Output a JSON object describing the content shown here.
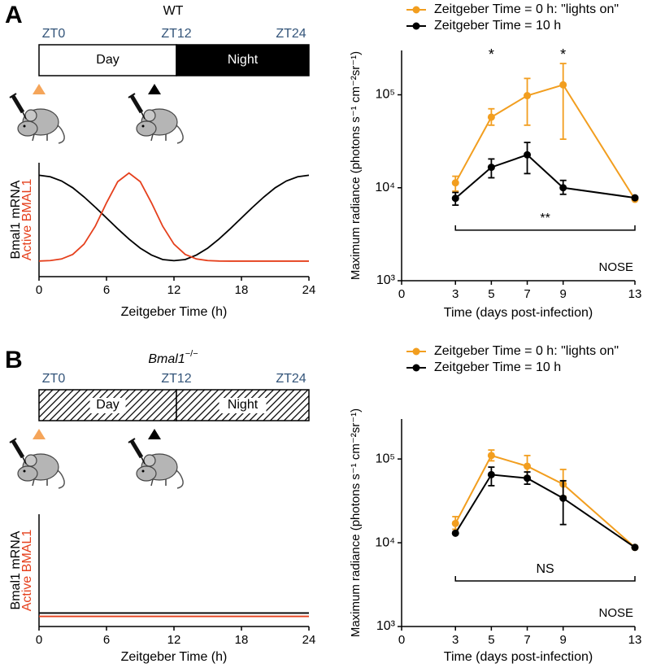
{
  "panels": [
    {
      "label": "A",
      "genotype": "WT",
      "zt": [
        "ZT0",
        "ZT12",
        "ZT24"
      ],
      "day": "Day",
      "night": "Night",
      "hatched": false
    },
    {
      "label": "B",
      "genotype": "Bmal1",
      "genotype_sup": "−/−",
      "zt": [
        "ZT0",
        "ZT12",
        "ZT24"
      ],
      "day": "Day",
      "night": "Night",
      "hatched": true
    }
  ],
  "chart_data": [
    {
      "type": "curve",
      "xlabel": "Zeitgeber Time (h)",
      "xlim": [
        0,
        24
      ],
      "xticks": [
        0,
        6,
        12,
        18,
        24
      ],
      "ylim": [
        0,
        1
      ],
      "x": [
        0,
        1,
        2,
        3,
        4,
        5,
        6,
        7,
        8,
        9,
        10,
        11,
        12,
        13,
        14,
        15,
        16,
        17,
        18,
        19,
        20,
        21,
        22,
        23,
        24
      ],
      "series": [
        {
          "name": "Bmal1 mRNA",
          "color": "#000000",
          "values": [
            0.89,
            0.877,
            0.84,
            0.78,
            0.7,
            0.61,
            0.515,
            0.42,
            0.33,
            0.25,
            0.19,
            0.15,
            0.14,
            0.15,
            0.19,
            0.25,
            0.33,
            0.42,
            0.515,
            0.61,
            0.7,
            0.78,
            0.84,
            0.877,
            0.89
          ]
        },
        {
          "name": "Active BMAL1",
          "color": "#e5401d",
          "values": [
            0.137,
            0.141,
            0.155,
            0.195,
            0.285,
            0.442,
            0.648,
            0.834,
            0.91,
            0.834,
            0.648,
            0.442,
            0.285,
            0.195,
            0.155,
            0.141,
            0.137,
            0.136,
            0.136,
            0.136,
            0.136,
            0.136,
            0.136,
            0.136,
            0.136
          ]
        }
      ]
    },
    {
      "type": "line",
      "log_y": true,
      "xlabel": "Time (days post-infection)",
      "ylabel": "Maximum radiance (photons s⁻¹ cm⁻²sr⁻¹)",
      "xlim": [
        0,
        13
      ],
      "xticks": [
        0,
        3,
        5,
        7,
        9,
        13
      ],
      "ylim": [
        1000,
        300000
      ],
      "yticks": [
        {
          "value": 1000,
          "label": "10³"
        },
        {
          "value": 10000,
          "label": "10⁴"
        },
        {
          "value": 100000,
          "label": "10⁵"
        }
      ],
      "x": [
        3,
        5,
        7,
        9,
        13
      ],
      "legend": "top-left",
      "series": [
        {
          "name": "Zeitgeber Time = 0 h: \"lights on\"",
          "color": "#f29e1f",
          "values": [
            11300,
            57500,
            98000,
            128000,
            7500
          ],
          "err_low": [
            9200,
            47100,
            47100,
            33300,
            null
          ],
          "err_high": [
            13300,
            70700,
            150000,
            217000,
            null
          ]
        },
        {
          "name": "Zeitgeber Time = 10 h",
          "color": "#000000",
          "values": [
            7700,
            16600,
            22600,
            10000,
            7800
          ],
          "err_low": [
            6500,
            12800,
            14200,
            8500,
            null
          ],
          "err_high": [
            8900,
            20400,
            30700,
            12000,
            null
          ]
        }
      ],
      "annotations": [
        {
          "text": "*",
          "x": 5
        },
        {
          "text": "*",
          "x": 9
        }
      ],
      "bracket": {
        "text": "**",
        "x": [
          3,
          13
        ],
        "y": 3500
      },
      "tissue": "NOSE"
    },
    {
      "type": "curve",
      "xlabel": "Zeitgeber Time (h)",
      "xlim": [
        0,
        24
      ],
      "xticks": [
        0,
        6,
        12,
        18,
        24
      ],
      "ylim": [
        0,
        1
      ],
      "x": [
        0,
        24
      ],
      "series": [
        {
          "name": "Bmal1 mRNA",
          "color": "#000000",
          "values": [
            0.12,
            0.12
          ]
        },
        {
          "name": "Active BMAL1",
          "color": "#e5401d",
          "values": [
            0.09,
            0.09
          ]
        }
      ]
    },
    {
      "type": "line",
      "log_y": true,
      "xlabel": "Time (days post-infection)",
      "ylabel": "Maximum radiance (photons s⁻¹ cm⁻²sr⁻¹)",
      "xlim": [
        0,
        13
      ],
      "xticks": [
        0,
        3,
        5,
        7,
        9,
        13
      ],
      "ylim": [
        1000,
        300000
      ],
      "yticks": [
        {
          "value": 1000,
          "label": "10³"
        },
        {
          "value": 10000,
          "label": "10⁴"
        },
        {
          "value": 100000,
          "label": "10⁵"
        }
      ],
      "x": [
        3,
        5,
        7,
        9,
        13
      ],
      "legend": "top-left",
      "series": [
        {
          "name": "Zeitgeber Time = 0 h: \"lights on\"",
          "color": "#f29e1f",
          "values": [
            17000,
            110000,
            82000,
            50000,
            8800
          ],
          "err_low": [
            14500,
            95000,
            62000,
            36000,
            null
          ],
          "err_high": [
            20500,
            128000,
            110000,
            75000,
            null
          ]
        },
        {
          "name": "Zeitgeber Time = 10 h",
          "color": "#000000",
          "values": [
            13000,
            65000,
            59000,
            34000,
            8800
          ],
          "err_low": [
            null,
            48000,
            50000,
            16500,
            null
          ],
          "err_high": [
            null,
            80000,
            70000,
            55000,
            null
          ]
        }
      ],
      "bracket": {
        "text": "NS",
        "x": [
          3,
          13
        ],
        "y": 3500
      },
      "tissue": "NOSE"
    }
  ]
}
